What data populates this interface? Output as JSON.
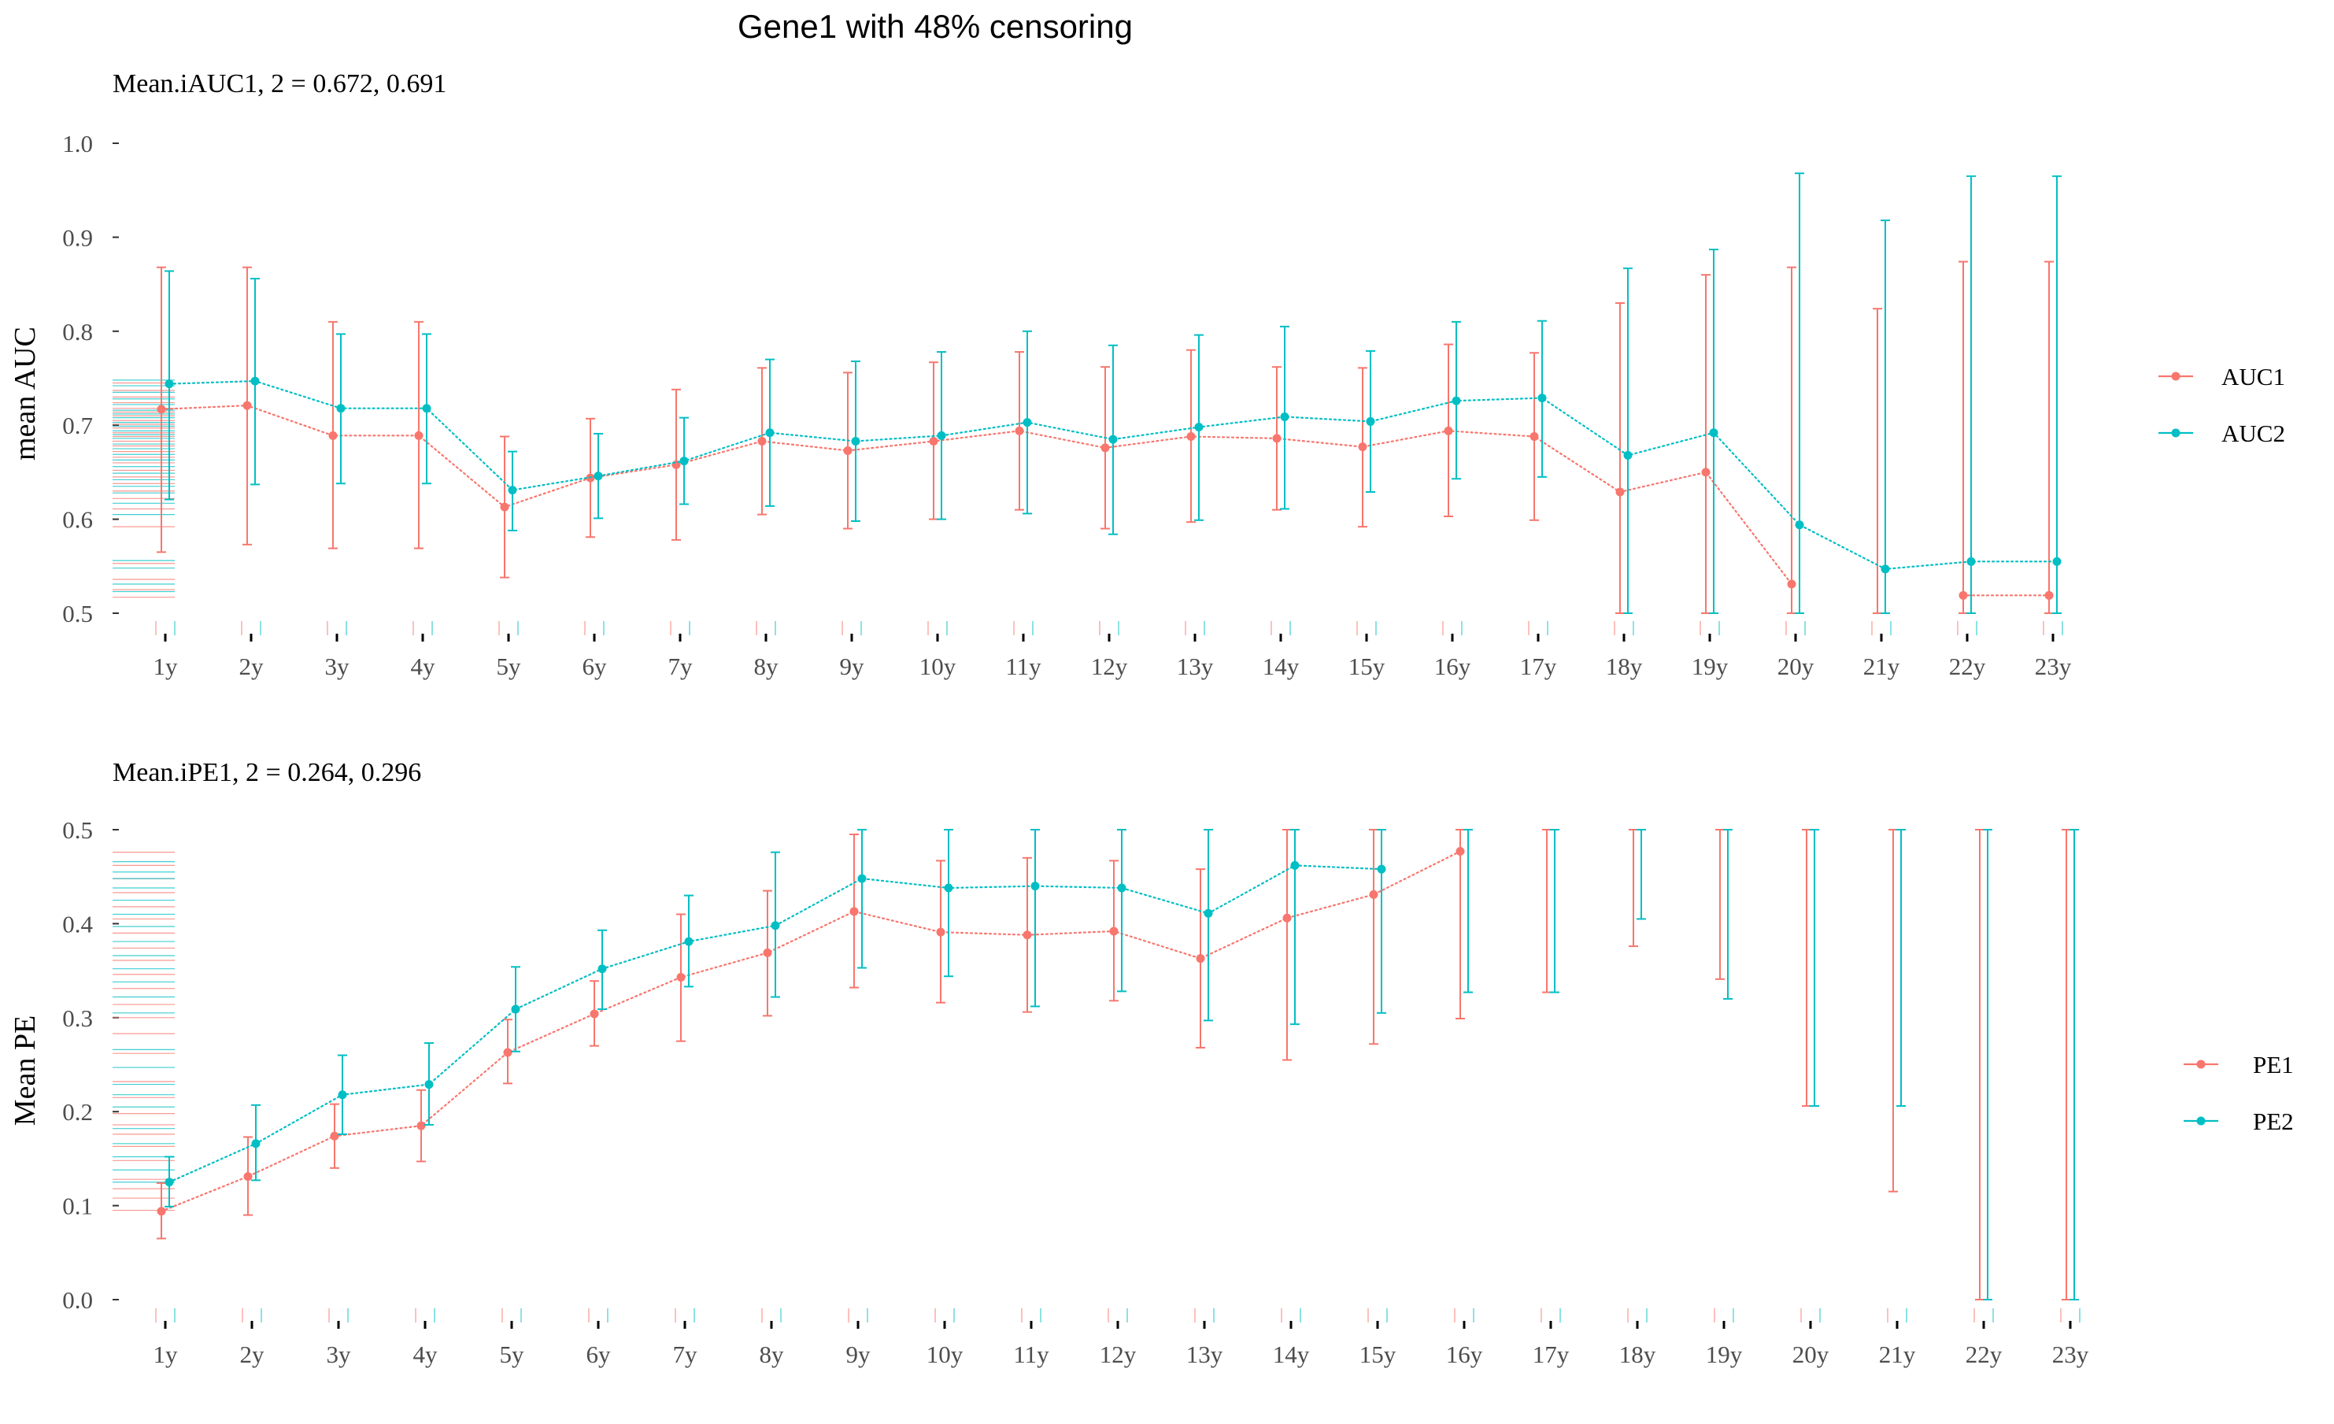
{
  "figure": {
    "title": "Gene1 with 48% censoring"
  },
  "chart_data": [
    {
      "type": "line",
      "panel": "top",
      "subtitle": "Mean.iAUC1, 2 =  0.672, 0.691",
      "ylabel": "mean AUC",
      "xlabel": "",
      "ylim": [
        0.5,
        1.0
      ],
      "yticks": [
        0.5,
        0.6,
        0.7,
        0.8,
        0.9,
        1.0
      ],
      "ytick_labels": [
        "0.5",
        "0.6",
        "0.7",
        "0.8",
        "0.9",
        "1.0"
      ],
      "categories": [
        "1y",
        "2y",
        "3y",
        "4y",
        "5y",
        "6y",
        "7y",
        "8y",
        "9y",
        "10y",
        "11y",
        "12y",
        "13y",
        "14y",
        "15y",
        "16y",
        "17y",
        "18y",
        "19y",
        "20y",
        "21y",
        "22y",
        "23y"
      ],
      "error_bars": true,
      "line_style": "dotted",
      "grid": false,
      "legend_position": "right",
      "series": [
        {
          "name": "AUC1",
          "color": "#F8766D",
          "values": [
            0.717,
            0.721,
            0.689,
            0.689,
            0.613,
            0.644,
            0.658,
            0.683,
            0.673,
            0.683,
            0.694,
            0.676,
            0.688,
            0.686,
            0.677,
            0.694,
            0.688,
            0.629,
            0.65,
            0.531,
            null,
            0.519,
            0.519
          ],
          "lower": [
            0.565,
            0.573,
            0.569,
            0.569,
            0.538,
            0.581,
            0.578,
            0.605,
            0.59,
            0.6,
            0.61,
            0.59,
            0.597,
            0.61,
            0.592,
            0.603,
            0.599,
            0.5,
            0.5,
            0.5,
            0.5,
            0.5,
            0.5
          ],
          "upper": [
            0.868,
            0.868,
            0.81,
            0.81,
            0.688,
            0.707,
            0.738,
            0.761,
            0.756,
            0.767,
            0.778,
            0.762,
            0.78,
            0.762,
            0.761,
            0.786,
            0.777,
            0.83,
            0.86,
            0.868,
            0.824,
            0.874,
            0.874
          ]
        },
        {
          "name": "AUC2",
          "color": "#00BFC4",
          "values": [
            0.744,
            0.747,
            0.718,
            0.718,
            0.631,
            0.646,
            0.662,
            0.692,
            0.683,
            0.689,
            0.703,
            0.685,
            0.698,
            0.709,
            0.704,
            0.726,
            0.729,
            0.668,
            0.692,
            0.594,
            0.547,
            0.555,
            0.555
          ],
          "lower": [
            0.621,
            0.637,
            0.638,
            0.638,
            0.588,
            0.601,
            0.616,
            0.614,
            0.598,
            0.6,
            0.606,
            0.584,
            0.599,
            0.611,
            0.629,
            0.643,
            0.645,
            0.5,
            0.5,
            0.5,
            0.5,
            0.5,
            0.5
          ],
          "upper": [
            0.864,
            0.856,
            0.797,
            0.797,
            0.672,
            0.691,
            0.708,
            0.77,
            0.768,
            0.778,
            0.8,
            0.785,
            0.796,
            0.805,
            0.779,
            0.81,
            0.811,
            0.867,
            0.887,
            0.968,
            0.918,
            0.965,
            0.965
          ]
        }
      ],
      "rug": {
        "AUC1": [
          0.517,
          0.525,
          0.536,
          0.553,
          0.592,
          0.611,
          0.622,
          0.63,
          0.638,
          0.645,
          0.652,
          0.66,
          0.666,
          0.672,
          0.678,
          0.683,
          0.688,
          0.692,
          0.697,
          0.701,
          0.705,
          0.71,
          0.714,
          0.718,
          0.724,
          0.73,
          0.737,
          0.745
        ],
        "AUC2": [
          0.523,
          0.531,
          0.548,
          0.556,
          0.605,
          0.617,
          0.628,
          0.635,
          0.642,
          0.649,
          0.656,
          0.663,
          0.669,
          0.675,
          0.68,
          0.686,
          0.69,
          0.694,
          0.699,
          0.703,
          0.708,
          0.712,
          0.716,
          0.722,
          0.728,
          0.735,
          0.742,
          0.748
        ]
      }
    },
    {
      "type": "line",
      "panel": "bottom",
      "subtitle": "Mean.iPE1, 2 =  0.264, 0.296",
      "ylabel": "Mean PE",
      "xlabel": "",
      "ylim": [
        0.0,
        0.5
      ],
      "yticks": [
        0.0,
        0.1,
        0.2,
        0.3,
        0.4,
        0.5
      ],
      "ytick_labels": [
        "0.0",
        "0.1",
        "0.2",
        "0.3",
        "0.4",
        "0.5"
      ],
      "categories": [
        "1y",
        "2y",
        "3y",
        "4y",
        "5y",
        "6y",
        "7y",
        "8y",
        "9y",
        "10y",
        "11y",
        "12y",
        "13y",
        "14y",
        "15y",
        "16y",
        "17y",
        "18y",
        "19y",
        "20y",
        "21y",
        "22y",
        "23y"
      ],
      "error_bars": true,
      "line_style": "dotted",
      "grid": false,
      "legend_position": "right",
      "series": [
        {
          "name": "PE1",
          "color": "#F8766D",
          "values": [
            0.094,
            0.131,
            0.174,
            0.185,
            0.263,
            0.304,
            0.343,
            0.369,
            0.413,
            0.391,
            0.388,
            0.392,
            0.363,
            0.406,
            0.431,
            0.477,
            null,
            null,
            null,
            null,
            null,
            null,
            null
          ],
          "lower": [
            0.065,
            0.09,
            0.14,
            0.147,
            0.23,
            0.27,
            0.275,
            0.302,
            0.332,
            0.316,
            0.306,
            0.318,
            0.268,
            0.255,
            0.272,
            0.299,
            0.327,
            0.376,
            0.341,
            0.206,
            0.115,
            0.0,
            0.0
          ],
          "upper": [
            0.124,
            0.173,
            0.208,
            0.223,
            0.298,
            0.339,
            0.41,
            0.435,
            0.495,
            0.467,
            0.47,
            0.467,
            0.458,
            0.5,
            0.5,
            0.5,
            0.5,
            0.5,
            0.5,
            0.5,
            0.5,
            0.5,
            0.5
          ]
        },
        {
          "name": "PE2",
          "color": "#00BFC4",
          "values": [
            0.125,
            0.166,
            0.218,
            0.229,
            0.309,
            0.352,
            0.381,
            0.398,
            0.448,
            0.438,
            0.44,
            0.438,
            0.411,
            0.462,
            0.458,
            null,
            null,
            null,
            null,
            null,
            null,
            null,
            null
          ],
          "lower": [
            0.099,
            0.127,
            0.176,
            0.186,
            0.264,
            0.309,
            0.333,
            0.322,
            0.353,
            0.344,
            0.312,
            0.328,
            0.297,
            0.293,
            0.305,
            0.327,
            0.327,
            0.405,
            0.32,
            0.206,
            0.206,
            0.0,
            0.0
          ],
          "upper": [
            0.152,
            0.207,
            0.26,
            0.273,
            0.354,
            0.393,
            0.43,
            0.476,
            0.5,
            0.5,
            0.5,
            0.5,
            0.5,
            0.5,
            0.5,
            0.5,
            0.5,
            0.5,
            0.5,
            0.5,
            0.5,
            0.5,
            0.5
          ]
        }
      ],
      "rug": {
        "PE1": [
          0.095,
          0.108,
          0.118,
          0.128,
          0.148,
          0.163,
          0.176,
          0.186,
          0.198,
          0.215,
          0.232,
          0.262,
          0.283,
          0.3,
          0.314,
          0.331,
          0.346,
          0.361,
          0.374,
          0.39,
          0.405,
          0.418,
          0.433,
          0.448,
          0.462,
          0.476
        ],
        "PE2": [
          0.125,
          0.138,
          0.152,
          0.166,
          0.182,
          0.205,
          0.218,
          0.229,
          0.247,
          0.266,
          0.305,
          0.322,
          0.338,
          0.352,
          0.366,
          0.381,
          0.397,
          0.41,
          0.425,
          0.438,
          0.448,
          0.455,
          0.466
        ]
      }
    }
  ]
}
